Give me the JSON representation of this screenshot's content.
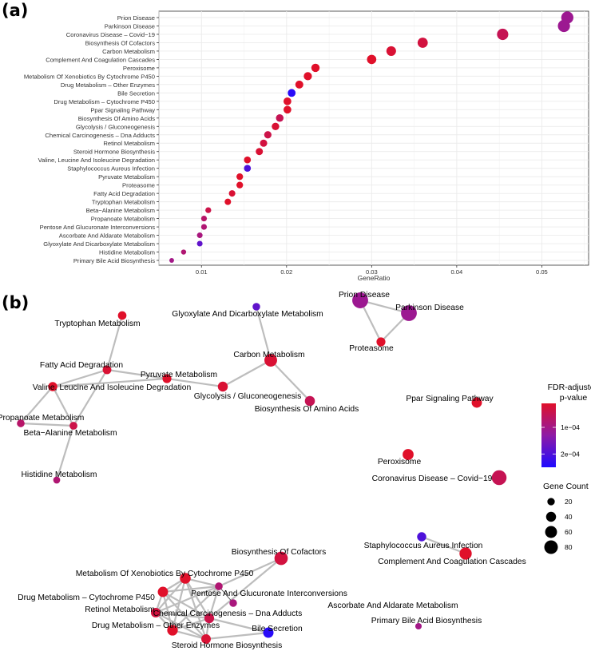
{
  "panel_labels": {
    "a": "(a)",
    "b": "(b)"
  },
  "colors": {
    "low": "#e0102a",
    "mid": "#8e1aa6",
    "high": "#1f0aff",
    "grid": "#ebebeb",
    "edge": "#bdbdbd",
    "panel_border": "#333333"
  },
  "chart_data": [
    {
      "type": "scatter",
      "panel": "a",
      "xlabel": "GeneRatio",
      "ylabel": "",
      "xlim": [
        0.005,
        0.0555
      ],
      "xticks": [
        0.01,
        0.02,
        0.03,
        0.04,
        0.05
      ],
      "xtick_labels": [
        "0.01",
        "0.02",
        "0.03",
        "0.04",
        "0.05"
      ],
      "grid": true,
      "categories": [
        "Prion Disease",
        "Parkinson Disease",
        "Coronavirus Disease – Covid−19",
        "Biosynthesis Of Cofactors",
        "Carbon Metabolism",
        "Complement And Coagulation Cascades",
        "Peroxisome",
        "Metabolism Of Xenobiotics By Cytochrome P450",
        "Drug Metabolism – Other Enzymes",
        "Bile Secretion",
        "Drug Metabolism – Cytochrome P450",
        "Ppar Signaling Pathway",
        "Biosynthesis Of Amino Acids",
        "Glycolysis / Gluconeogenesis",
        "Chemical Carcinogenesis – Dna Adducts",
        "Retinol Metabolism",
        "Steroid Hormone Biosynthesis",
        "Valine, Leucine And Isoleucine Degradation",
        "Staphylococcus Aureus Infection",
        "Pyruvate Metabolism",
        "Proteasome",
        "Fatty Acid Degradation",
        "Tryptophan Metabolism",
        "Beta−Alanine Metabolism",
        "Propanoate Metabolism",
        "Pentose And Glucuronate Interconversions",
        "Ascorbate And Aldarate Metabolism",
        "Glyoxylate And Dicarboxylate Metabolism",
        "Histidine Metabolism",
        "Primary Bile Acid Biosynthesis"
      ],
      "gene_ratio": [
        0.053,
        0.0526,
        0.0454,
        0.036,
        0.0323,
        0.03,
        0.0234,
        0.0225,
        0.0215,
        0.0206,
        0.0201,
        0.0201,
        0.0192,
        0.0187,
        0.0178,
        0.0173,
        0.0168,
        0.0154,
        0.0154,
        0.0145,
        0.0145,
        0.0136,
        0.0131,
        0.0108,
        0.0103,
        0.0103,
        0.0098,
        0.0098,
        0.0079,
        0.0065
      ],
      "fdr_adjusted_p": [
        0.00011,
        0.00011,
        5e-05,
        3e-05,
        2e-05,
        1e-05,
        1e-05,
        1e-05,
        1e-05,
        0.00024,
        1e-05,
        1e-05,
        5e-05,
        2e-05,
        4e-05,
        3e-05,
        2e-05,
        1e-05,
        0.0002,
        1e-05,
        1e-05,
        2e-05,
        1e-05,
        4e-05,
        7e-05,
        8e-05,
        9e-05,
        0.00018,
        8e-05,
        0.0001
      ],
      "gene_count": [
        113,
        112,
        97,
        77,
        69,
        64,
        50,
        48,
        46,
        44,
        43,
        43,
        41,
        40,
        38,
        37,
        36,
        33,
        33,
        31,
        31,
        29,
        28,
        23,
        22,
        22,
        21,
        21,
        17,
        14
      ]
    },
    {
      "type": "network",
      "panel": "b",
      "nodes": [
        {
          "label": "Tryptophan Metabolism",
          "fdr": 1e-05,
          "count": 28
        },
        {
          "label": "Glyoxylate And Dicarboxylate Metabolism",
          "fdr": 0.00018,
          "count": 21
        },
        {
          "label": "Prion Disease",
          "fdr": 0.00011,
          "count": 113
        },
        {
          "label": "Parkinson Disease",
          "fdr": 0.00011,
          "count": 112
        },
        {
          "label": "Proteasome",
          "fdr": 1e-05,
          "count": 31
        },
        {
          "label": "Fatty Acid Degradation",
          "fdr": 2e-05,
          "count": 29
        },
        {
          "label": "Carbon Metabolism",
          "fdr": 2e-05,
          "count": 69
        },
        {
          "label": "Pyruvate Metabolism",
          "fdr": 1e-05,
          "count": 31
        },
        {
          "label": "Valine, Leucine And Isoleucine Degradation",
          "fdr": 1e-05,
          "count": 33
        },
        {
          "label": "Glycolysis / Gluconeogenesis",
          "fdr": 2e-05,
          "count": 40
        },
        {
          "label": "Biosynthesis Of Amino Acids",
          "fdr": 5e-05,
          "count": 41
        },
        {
          "label": "Ppar Signaling Pathway",
          "fdr": 1e-05,
          "count": 43
        },
        {
          "label": "Propanoate Metabolism",
          "fdr": 7e-05,
          "count": 22
        },
        {
          "label": "Beta−Alanine Metabolism",
          "fdr": 4e-05,
          "count": 23
        },
        {
          "label": "Histidine Metabolism",
          "fdr": 8e-05,
          "count": 17
        },
        {
          "label": "Peroxisome",
          "fdr": 1e-05,
          "count": 50
        },
        {
          "label": "Coronavirus Disease – Covid−19",
          "fdr": 5e-05,
          "count": 97
        },
        {
          "label": "Staphylococcus Aureus Infection",
          "fdr": 0.0002,
          "count": 33
        },
        {
          "label": "Complement And Coagulation Cascades",
          "fdr": 1e-05,
          "count": 64
        },
        {
          "label": "Biosynthesis Of Cofactors",
          "fdr": 3e-05,
          "count": 77
        },
        {
          "label": "Metabolism Of Xenobiotics By Cytochrome P450",
          "fdr": 1e-05,
          "count": 48
        },
        {
          "label": "Drug Metabolism – Cytochrome P450",
          "fdr": 1e-05,
          "count": 43
        },
        {
          "label": "Pentose And Glucuronate Interconversions",
          "fdr": 8e-05,
          "count": 22
        },
        {
          "label": "Ascorbate And Aldarate Metabolism",
          "fdr": 9e-05,
          "count": 21
        },
        {
          "label": "Retinol Metabolism",
          "fdr": 3e-05,
          "count": 37
        },
        {
          "label": "Chemical Carcinogenesis – Dna Adducts",
          "fdr": 4e-05,
          "count": 38
        },
        {
          "label": "Drug Metabolism – Other Enzymes",
          "fdr": 1e-05,
          "count": 46
        },
        {
          "label": "Bile Secretion",
          "fdr": 0.00024,
          "count": 44
        },
        {
          "label": "Steroid Hormone Biosynthesis",
          "fdr": 2e-05,
          "count": 36
        },
        {
          "label": "Primary Bile Acid Biosynthesis",
          "fdr": 0.0001,
          "count": 14
        }
      ],
      "edges": [
        [
          "Prion Disease",
          "Parkinson Disease"
        ],
        [
          "Prion Disease",
          "Proteasome"
        ],
        [
          "Parkinson Disease",
          "Proteasome"
        ],
        [
          "Tryptophan Metabolism",
          "Fatty Acid Degradation"
        ],
        [
          "Fatty Acid Degradation",
          "Valine, Leucine And Isoleucine Degradation"
        ],
        [
          "Fatty Acid Degradation",
          "Pyruvate Metabolism"
        ],
        [
          "Fatty Acid Degradation",
          "Beta−Alanine Metabolism"
        ],
        [
          "Pyruvate Metabolism",
          "Glycolysis / Gluconeogenesis"
        ],
        [
          "Pyruvate Metabolism",
          "Valine, Leucine And Isoleucine Degradation"
        ],
        [
          "Glycolysis / Gluconeogenesis",
          "Carbon Metabolism"
        ],
        [
          "Glyoxylate And Dicarboxylate Metabolism",
          "Carbon Metabolism"
        ],
        [
          "Carbon Metabolism",
          "Biosynthesis Of Amino Acids"
        ],
        [
          "Valine, Leucine And Isoleucine Degradation",
          "Propanoate Metabolism"
        ],
        [
          "Valine, Leucine And Isoleucine Degradation",
          "Beta−Alanine Metabolism"
        ],
        [
          "Propanoate Metabolism",
          "Beta−Alanine Metabolism"
        ],
        [
          "Beta−Alanine Metabolism",
          "Histidine Metabolism"
        ],
        [
          "Staphylococcus Aureus Infection",
          "Complement And Coagulation Cascades"
        ],
        [
          "Biosynthesis Of Cofactors",
          "Pentose And Glucuronate Interconversions"
        ],
        [
          "Biosynthesis Of Cofactors",
          "Chemical Carcinogenesis – Dna Adducts"
        ],
        [
          "Metabolism Of Xenobiotics By Cytochrome P450",
          "Drug Metabolism – Cytochrome P450"
        ],
        [
          "Metabolism Of Xenobiotics By Cytochrome P450",
          "Pentose And Glucuronate Interconversions"
        ],
        [
          "Metabolism Of Xenobiotics By Cytochrome P450",
          "Retinol Metabolism"
        ],
        [
          "Metabolism Of Xenobiotics By Cytochrome P450",
          "Chemical Carcinogenesis – Dna Adducts"
        ],
        [
          "Metabolism Of Xenobiotics By Cytochrome P450",
          "Drug Metabolism – Other Enzymes"
        ],
        [
          "Metabolism Of Xenobiotics By Cytochrome P450",
          "Steroid Hormone Biosynthesis"
        ],
        [
          "Drug Metabolism – Cytochrome P450",
          "Retinol Metabolism"
        ],
        [
          "Drug Metabolism – Cytochrome P450",
          "Chemical Carcinogenesis – Dna Adducts"
        ],
        [
          "Drug Metabolism – Cytochrome P450",
          "Drug Metabolism – Other Enzymes"
        ],
        [
          "Drug Metabolism – Cytochrome P450",
          "Pentose And Glucuronate Interconversions"
        ],
        [
          "Drug Metabolism – Cytochrome P450",
          "Steroid Hormone Biosynthesis"
        ],
        [
          "Pentose And Glucuronate Interconversions",
          "Ascorbate And Aldarate Metabolism"
        ],
        [
          "Pentose And Glucuronate Interconversions",
          "Chemical Carcinogenesis – Dna Adducts"
        ],
        [
          "Pentose And Glucuronate Interconversions",
          "Drug Metabolism – Other Enzymes"
        ],
        [
          "Pentose And Glucuronate Interconversions",
          "Retinol Metabolism"
        ],
        [
          "Retinol Metabolism",
          "Chemical Carcinogenesis – Dna Adducts"
        ],
        [
          "Retinol Metabolism",
          "Drug Metabolism – Other Enzymes"
        ],
        [
          "Retinol Metabolism",
          "Steroid Hormone Biosynthesis"
        ],
        [
          "Chemical Carcinogenesis – Dna Adducts",
          "Drug Metabolism – Other Enzymes"
        ],
        [
          "Chemical Carcinogenesis – Dna Adducts",
          "Steroid Hormone Biosynthesis"
        ],
        [
          "Chemical Carcinogenesis – Dna Adducts",
          "Bile Secretion"
        ],
        [
          "Drug Metabolism – Other Enzymes",
          "Steroid Hormone Biosynthesis"
        ],
        [
          "Steroid Hormone Biosynthesis",
          "Bile Secretion"
        ]
      ]
    }
  ],
  "legend": {
    "color_title_line1": "FDR-adjusted",
    "color_title_line2": "p-value",
    "color_ticks": [
      {
        "value": 0.0001,
        "label": "1e−04"
      },
      {
        "value": 0.0002,
        "label": "2e−04"
      }
    ],
    "color_range": [
      1e-05,
      0.00025
    ],
    "size_title": "Gene Count",
    "size_items": [
      20,
      40,
      60,
      80
    ]
  }
}
